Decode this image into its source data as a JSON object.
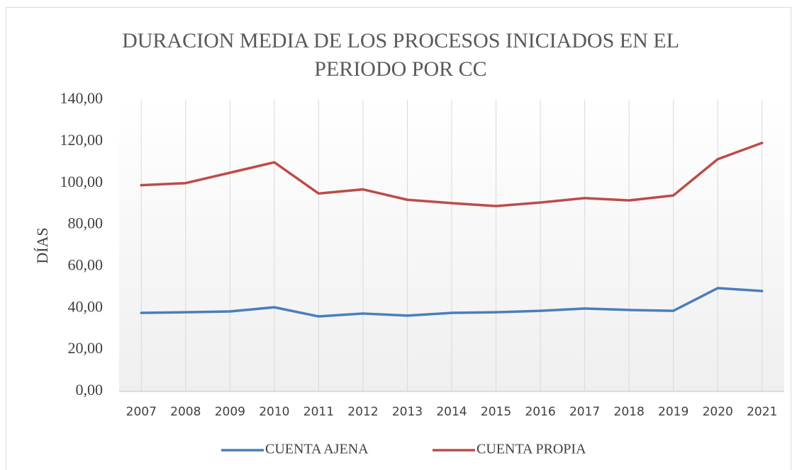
{
  "chart_data": {
    "type": "line",
    "title": "DURACION MEDIA DE LOS PROCESOS INICIADOS EN EL PERIODO POR CC",
    "y_label": "DÍAS",
    "categories": [
      "2007",
      "2008",
      "2009",
      "2010",
      "2011",
      "2012",
      "2013",
      "2014",
      "2015",
      "2016",
      "2017",
      "2018",
      "2019",
      "2020",
      "2021"
    ],
    "series": [
      {
        "name": "CUENTA AJENA",
        "color": "#4a7ebb",
        "values": [
          37.7,
          38.0,
          38.4,
          40.4,
          36.0,
          37.4,
          36.4,
          37.7,
          38.0,
          38.7,
          39.8,
          39.1,
          38.7,
          49.6,
          48.2
        ]
      },
      {
        "name": "CUENTA PROPIA",
        "color": "#be4b48",
        "values": [
          99.0,
          100.0,
          105.0,
          110.0,
          95.0,
          97.0,
          92.0,
          90.4,
          89.0,
          90.7,
          92.8,
          91.7,
          94.1,
          111.5,
          119.3
        ]
      }
    ],
    "ylim": [
      0,
      140
    ],
    "yticks": [
      {
        "value": 0,
        "label": "0,00"
      },
      {
        "value": 20,
        "label": "20,00"
      },
      {
        "value": 40,
        "label": "40,00"
      },
      {
        "value": 60,
        "label": "60,00"
      },
      {
        "value": 80,
        "label": "80,00"
      },
      {
        "value": 100,
        "label": "100,00"
      },
      {
        "value": 120,
        "label": "120,00"
      },
      {
        "value": 140,
        "label": "140,00"
      }
    ],
    "grid": true,
    "legend": "bottom"
  }
}
